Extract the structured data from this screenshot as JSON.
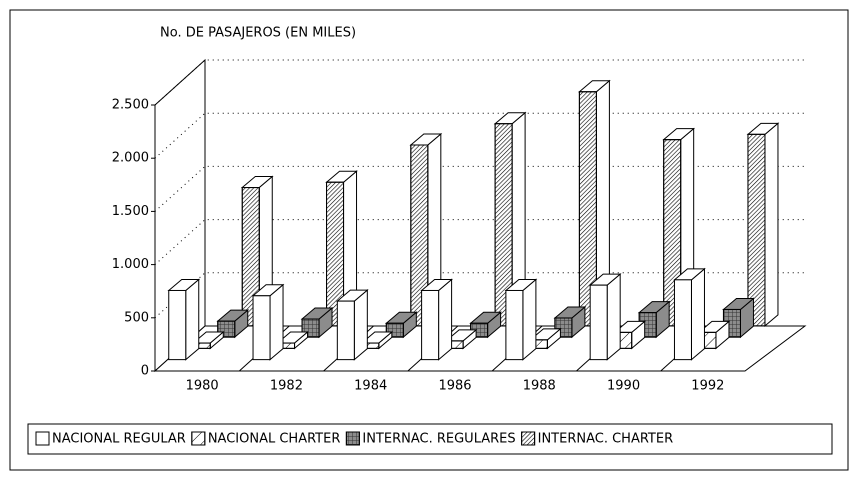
{
  "chart_data": {
    "type": "bar3d",
    "title": "No. DE PASAJEROS (EN MILES)",
    "categories": [
      "1980",
      "1982",
      "1984",
      "1986",
      "1988",
      "1990",
      "1992"
    ],
    "series": [
      {
        "name": "NACIONAL REGULAR",
        "color": "#ffffff",
        "values": [
          650,
          600,
          550,
          650,
          650,
          700,
          750
        ]
      },
      {
        "name": "NACIONAL CHARTER",
        "color": "#ffffff",
        "values": [
          50,
          50,
          50,
          70,
          80,
          150,
          150
        ]
      },
      {
        "name": "INTERNAC. REGULARES",
        "color": "#8c8c8c",
        "values": [
          150,
          170,
          130,
          130,
          180,
          230,
          260
        ]
      },
      {
        "name": "INTERNAC. CHARTER",
        "color": "#ffffff",
        "values": [
          1300,
          1350,
          1700,
          1900,
          2200,
          1750,
          1800
        ]
      }
    ],
    "ylim": [
      0,
      2500
    ],
    "yticks": [
      0,
      500,
      {
        "value": 1000,
        "label": "1.000"
      },
      {
        "value": 1500,
        "label": "1.500"
      },
      {
        "value": 2000,
        "label": "2.000"
      },
      {
        "value": 2500,
        "label": "2.500"
      }
    ],
    "grid": true
  }
}
